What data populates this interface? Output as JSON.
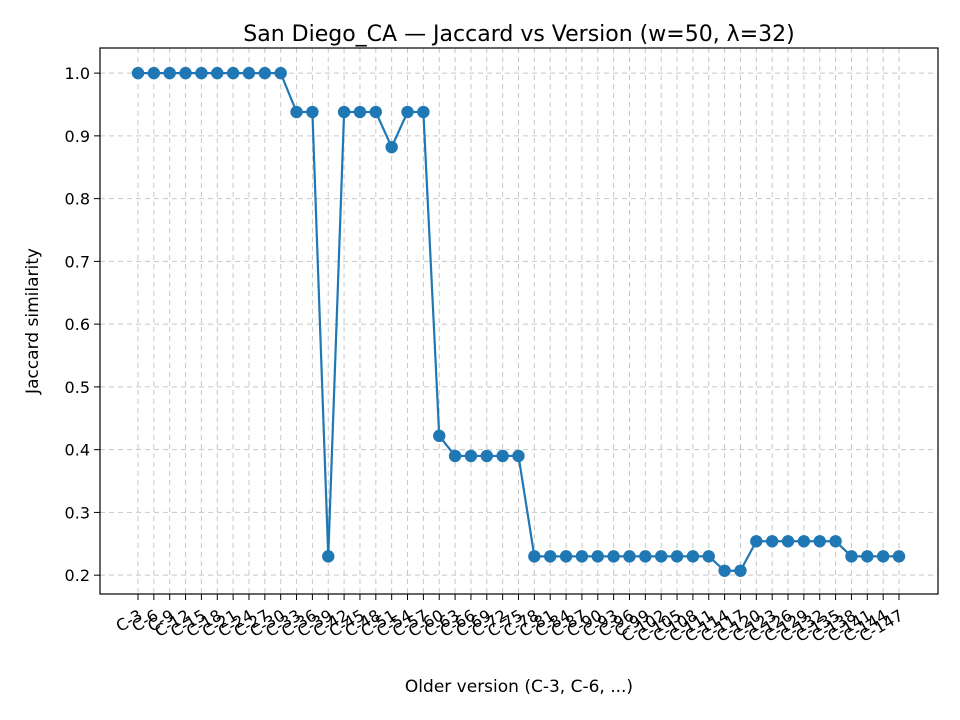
{
  "chart_data": {
    "type": "line",
    "title": "San Diego_CA — Jaccard vs Version (w=50, λ=32)",
    "xlabel": "Older version (C-3, C-6, ...)",
    "ylabel": "Jaccard similarity",
    "ylim": [
      0.17,
      1.04
    ],
    "yticks": [
      0.2,
      0.3,
      0.4,
      0.5,
      0.6,
      0.7,
      0.8,
      0.9,
      1.0
    ],
    "ytick_labels": [
      "0.2",
      "0.3",
      "0.4",
      "0.5",
      "0.6",
      "0.7",
      "0.8",
      "0.9",
      "1.0"
    ],
    "grid": true,
    "color": "#1f77b4",
    "categories": [
      "C-3",
      "C-6",
      "C-9",
      "C-12",
      "C-15",
      "C-18",
      "C-21",
      "C-24",
      "C-27",
      "C-30",
      "C-33",
      "C-36",
      "C-39",
      "C-42",
      "C-45",
      "C-48",
      "C-51",
      "C-54",
      "C-57",
      "C-60",
      "C-63",
      "C-66",
      "C-69",
      "C-72",
      "C-75",
      "C-78",
      "C-81",
      "C-84",
      "C-87",
      "C-90",
      "C-93",
      "C-96",
      "C-99",
      "C-102",
      "C-105",
      "C-108",
      "C-111",
      "C-114",
      "C-117",
      "C-120",
      "C-123",
      "C-126",
      "C-129",
      "C-132",
      "C-135",
      "C-138",
      "C-141",
      "C-144",
      "C-147"
    ],
    "series": [
      {
        "values": [
          1.0,
          1.0,
          1.0,
          1.0,
          1.0,
          1.0,
          1.0,
          1.0,
          1.0,
          1.0,
          0.938,
          0.938,
          0.23,
          0.938,
          0.938,
          0.938,
          0.882,
          0.938,
          0.938,
          0.422,
          0.39,
          0.39,
          0.39,
          0.39,
          0.39,
          0.23,
          0.23,
          0.23,
          0.23,
          0.23,
          0.23,
          0.23,
          0.23,
          0.23,
          0.23,
          0.23,
          0.23,
          0.207,
          0.207,
          0.254,
          0.254,
          0.254,
          0.254,
          0.254,
          0.254,
          0.23,
          0.23,
          0.23,
          0.23
        ]
      }
    ]
  }
}
